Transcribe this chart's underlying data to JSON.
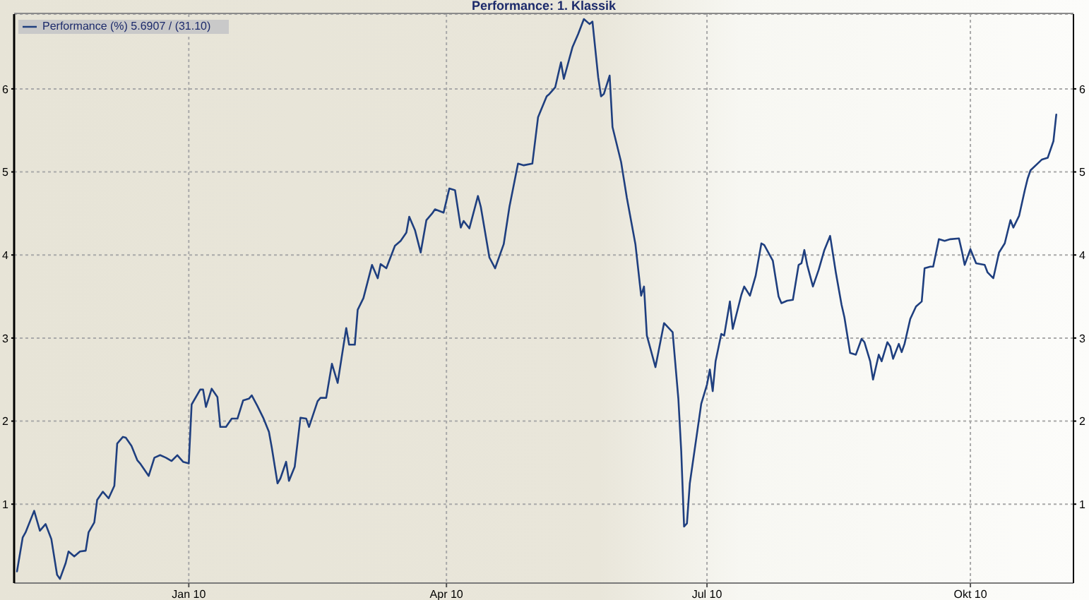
{
  "chart_data": {
    "type": "line",
    "title": "Performance: 1. Klassik",
    "x": [
      "2009-11-02",
      "2009-11-04",
      "2009-11-05",
      "2009-11-08",
      "2009-11-10",
      "2009-11-12",
      "2009-11-14",
      "2009-11-16",
      "2009-11-17",
      "2009-11-19",
      "2009-11-20",
      "2009-11-22",
      "2009-11-24",
      "2009-11-26",
      "2009-11-27",
      "2009-11-29",
      "2009-11-30",
      "2009-12-02",
      "2009-12-04",
      "2009-12-06",
      "2009-12-07",
      "2009-12-09",
      "2009-12-10",
      "2009-12-12",
      "2009-12-14",
      "2009-12-15",
      "2009-12-18",
      "2009-12-20",
      "2009-12-22",
      "2009-12-24",
      "2009-12-26",
      "2009-12-28",
      "2009-12-30",
      "2010-01-01",
      "2010-01-02",
      "2010-01-05",
      "2010-01-06",
      "2010-01-07",
      "2010-01-09",
      "2010-01-11",
      "2010-01-12",
      "2010-01-14",
      "2010-01-16",
      "2010-01-18",
      "2010-01-20",
      "2010-01-22",
      "2010-01-23",
      "2010-01-25",
      "2010-01-27",
      "2010-01-29",
      "2010-01-30",
      "2010-02-01",
      "2010-02-02",
      "2010-02-04",
      "2010-02-05",
      "2010-02-07",
      "2010-02-09",
      "2010-02-11",
      "2010-02-12",
      "2010-02-15",
      "2010-02-16",
      "2010-02-18",
      "2010-02-20",
      "2010-02-22",
      "2010-02-25",
      "2010-02-26",
      "2010-02-28",
      "2010-03-01",
      "2010-03-03",
      "2010-03-06",
      "2010-03-08",
      "2010-03-09",
      "2010-03-11",
      "2010-03-14",
      "2010-03-16",
      "2010-03-18",
      "2010-03-19",
      "2010-03-21",
      "2010-03-23",
      "2010-03-25",
      "2010-03-27",
      "2010-03-28",
      "2010-03-31",
      "2010-04-02",
      "2010-04-04",
      "2010-04-06",
      "2010-04-07",
      "2010-04-09",
      "2010-04-12",
      "2010-04-13",
      "2010-04-16",
      "2010-04-18",
      "2010-04-21",
      "2010-04-23",
      "2010-04-26",
      "2010-04-28",
      "2010-05-01",
      "2010-05-03",
      "2010-05-06",
      "2010-05-07",
      "2010-05-09",
      "2010-05-11",
      "2010-05-12",
      "2010-05-15",
      "2010-05-17",
      "2010-05-19",
      "2010-05-21",
      "2010-05-22",
      "2010-05-24",
      "2010-05-25",
      "2010-05-26",
      "2010-05-28",
      "2010-05-29",
      "2010-06-01",
      "2010-06-03",
      "2010-06-06",
      "2010-06-08",
      "2010-06-09",
      "2010-06-10",
      "2010-06-13",
      "2010-06-16",
      "2010-06-19",
      "2010-06-21",
      "2010-06-22",
      "2010-06-23",
      "2010-06-24",
      "2010-06-25",
      "2010-06-29",
      "2010-07-01",
      "2010-07-02",
      "2010-07-03",
      "2010-07-04",
      "2010-07-06",
      "2010-07-07",
      "2010-07-09",
      "2010-07-10",
      "2010-07-13",
      "2010-07-14",
      "2010-07-16",
      "2010-07-18",
      "2010-07-20",
      "2010-07-21",
      "2010-07-24",
      "2010-07-26",
      "2010-07-27",
      "2010-07-29",
      "2010-07-31",
      "2010-08-02",
      "2010-08-03",
      "2010-08-04",
      "2010-08-05",
      "2010-08-07",
      "2010-08-09",
      "2010-08-11",
      "2010-08-13",
      "2010-08-14",
      "2010-08-15",
      "2010-08-17",
      "2010-08-18",
      "2010-08-20",
      "2010-08-22",
      "2010-08-24",
      "2010-08-25",
      "2010-08-27",
      "2010-08-28",
      "2010-08-30",
      "2010-08-31",
      "2010-09-02",
      "2010-09-03",
      "2010-09-04",
      "2010-09-06",
      "2010-09-07",
      "2010-09-08",
      "2010-09-10",
      "2010-09-12",
      "2010-09-14",
      "2010-09-15",
      "2010-09-17",
      "2010-09-18",
      "2010-09-20",
      "2010-09-22",
      "2010-09-24",
      "2010-09-27",
      "2010-09-28",
      "2010-09-29",
      "2010-10-01",
      "2010-10-03",
      "2010-10-06",
      "2010-10-07",
      "2010-10-09",
      "2010-10-11",
      "2010-10-13",
      "2010-10-15",
      "2010-10-16",
      "2010-10-18",
      "2010-10-20",
      "2010-10-21",
      "2010-10-22",
      "2010-10-26",
      "2010-10-28",
      "2010-10-30",
      "2010-10-31"
    ],
    "series": [
      {
        "name": "Performance (%) 5.6907 / (31.10)",
        "color": "#1f3f7f",
        "values": [
          0.19,
          0.6,
          0.66,
          0.92,
          0.68,
          0.76,
          0.58,
          0.15,
          0.1,
          0.29,
          0.43,
          0.37,
          0.43,
          0.44,
          0.66,
          0.78,
          1.05,
          1.15,
          1.07,
          1.22,
          1.73,
          1.81,
          1.8,
          1.7,
          1.53,
          1.49,
          1.34,
          1.56,
          1.59,
          1.56,
          1.52,
          1.59,
          1.51,
          1.49,
          2.2,
          2.38,
          2.38,
          2.17,
          2.39,
          2.29,
          1.93,
          1.93,
          2.03,
          2.03,
          2.25,
          2.27,
          2.31,
          2.18,
          2.04,
          1.87,
          1.68,
          1.25,
          1.31,
          1.51,
          1.28,
          1.45,
          2.04,
          2.03,
          1.93,
          2.24,
          2.28,
          2.28,
          2.69,
          2.46,
          3.12,
          2.92,
          2.92,
          3.34,
          3.48,
          3.88,
          3.72,
          3.89,
          3.84,
          4.11,
          4.17,
          4.27,
          4.46,
          4.3,
          4.03,
          4.42,
          4.5,
          4.55,
          4.51,
          4.8,
          4.78,
          4.33,
          4.41,
          4.32,
          4.71,
          4.58,
          3.97,
          3.84,
          4.13,
          4.58,
          5.1,
          5.08,
          5.1,
          5.66,
          5.91,
          5.94,
          6.02,
          6.32,
          6.12,
          6.5,
          6.66,
          6.84,
          6.78,
          6.81,
          6.14,
          5.91,
          5.94,
          6.16,
          5.54,
          5.12,
          4.69,
          4.13,
          3.51,
          3.62,
          3.03,
          2.65,
          3.18,
          3.07,
          2.27,
          1.64,
          0.73,
          0.77,
          1.25,
          2.21,
          2.44,
          2.62,
          2.36,
          2.72,
          3.05,
          3.03,
          3.44,
          3.11,
          3.52,
          3.62,
          3.51,
          3.75,
          4.14,
          4.12,
          3.93,
          3.5,
          3.42,
          3.45,
          3.46,
          3.88,
          3.9,
          4.06,
          3.88,
          3.62,
          3.82,
          4.06,
          4.23,
          4.01,
          3.79,
          3.4,
          3.25,
          2.82,
          2.8,
          2.99,
          2.95,
          2.72,
          2.5,
          2.8,
          2.72,
          2.95,
          2.9,
          2.75,
          2.93,
          2.83,
          2.93,
          3.23,
          3.38,
          3.44,
          3.84,
          3.86,
          3.86,
          4.19,
          4.17,
          4.19,
          4.2,
          4.05,
          3.88,
          4.07,
          3.9,
          3.88,
          3.79,
          3.72,
          4.03,
          4.14,
          4.42,
          4.33,
          4.47,
          4.78,
          4.92,
          5.02,
          5.15,
          5.17,
          5.37,
          5.69
        ]
      }
    ],
    "xlim": [
      "2009-11-01",
      "2010-11-06"
    ],
    "xticks": [
      {
        "value": "2010-01-01",
        "label": "Jan 10"
      },
      {
        "value": "2010-04-01",
        "label": "Apr 10"
      },
      {
        "value": "2010-07-01",
        "label": "Jul 10"
      },
      {
        "value": "2010-10-01",
        "label": "Okt 10"
      }
    ],
    "ylim": [
      0.05,
      6.9
    ],
    "yticks": [
      1,
      2,
      3,
      4,
      5,
      6
    ],
    "y2lim": [
      0.05,
      6.9
    ],
    "y2ticks": [
      1,
      2,
      3,
      4,
      5,
      6
    ],
    "grid": true,
    "legend": "top left"
  }
}
